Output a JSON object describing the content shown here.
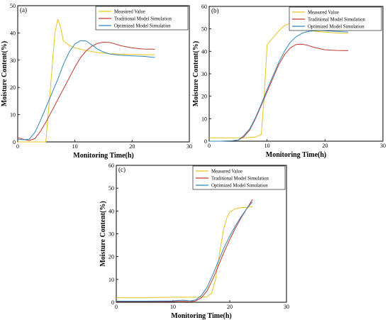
{
  "chart_data": [
    {
      "type": "line",
      "panel_label": "(a)",
      "xlabel": "Monitoring Time(h)",
      "ylabel": "Moisture Content(%)",
      "xlim": [
        0,
        30
      ],
      "ylim": [
        0,
        50
      ],
      "xticks": [
        0,
        10,
        20,
        30
      ],
      "yticks": [
        0,
        10,
        20,
        30,
        40,
        50
      ],
      "legend_position": "top-right",
      "series": [
        {
          "name": "Measured Value",
          "color": "#e8c421",
          "x": [
            0,
            4.9,
            5.0,
            5.8,
            6.5,
            7.0,
            7.5,
            8.0,
            9,
            10,
            12,
            14,
            16,
            18,
            20,
            22,
            24
          ],
          "y": [
            0,
            0,
            2,
            22,
            40,
            45,
            42,
            37,
            35.5,
            34.5,
            33.5,
            32.8,
            32.4,
            32.2,
            32.1,
            32.0,
            32.0
          ]
        },
        {
          "name": "Traditional Model Simulation",
          "color": "#c0392b",
          "x": [
            0,
            1,
            2,
            3,
            4,
            5,
            6,
            7,
            8,
            9,
            10,
            11,
            12,
            13,
            14,
            15,
            16,
            17,
            18,
            20,
            22,
            24
          ],
          "y": [
            1.5,
            1.0,
            0.5,
            1.2,
            4,
            7.5,
            11.5,
            15.5,
            19.5,
            23.5,
            27.5,
            31,
            33.5,
            35.2,
            36.2,
            36.6,
            36.5,
            36,
            35.3,
            34.5,
            34.1,
            34.0
          ]
        },
        {
          "name": "Optimized Model Simulation",
          "color": "#2e86c1",
          "x": [
            0,
            1,
            2,
            3,
            4,
            5,
            6,
            7,
            8,
            9,
            10,
            11,
            12,
            13,
            14,
            15,
            16,
            18,
            20,
            22,
            24
          ],
          "y": [
            1.0,
            0.8,
            1.0,
            3.5,
            8,
            13,
            18,
            23,
            28.5,
            33,
            36,
            37.2,
            37,
            35.5,
            34,
            33,
            32.3,
            31.8,
            31.6,
            31.4,
            31.0
          ]
        }
      ]
    },
    {
      "type": "line",
      "panel_label": "(b)",
      "xlabel": "Monitoring Time(h)",
      "ylabel": "Moisture Content(%)",
      "xlim": [
        0,
        30
      ],
      "ylim": [
        0,
        60
      ],
      "xticks": [
        0,
        10,
        20,
        30
      ],
      "yticks": [
        0,
        10,
        20,
        30,
        40,
        50,
        60
      ],
      "legend_position": "top-right",
      "series": [
        {
          "name": "Measured Value",
          "color": "#e8c421",
          "x": [
            0,
            2,
            4,
            6,
            8,
            9,
            9.5,
            10,
            11,
            12,
            13,
            14,
            15,
            16,
            17,
            18,
            20,
            22,
            24
          ],
          "y": [
            1.5,
            1.5,
            1.5,
            1.5,
            1.8,
            3,
            20,
            43,
            46,
            49,
            51.5,
            52.5,
            52.5,
            51.5,
            50,
            49,
            48.5,
            48.2,
            48.0
          ]
        },
        {
          "name": "Traditional Model Simulation",
          "color": "#c0392b",
          "x": [
            0,
            2,
            4,
            5,
            6,
            7,
            8,
            9,
            10,
            11,
            12,
            13,
            14,
            15,
            16,
            17,
            18,
            20,
            22,
            24
          ],
          "y": [
            0,
            0,
            0.2,
            0.5,
            2,
            5,
            10,
            16,
            22,
            28,
            34,
            38.5,
            41.5,
            43,
            43.2,
            42.7,
            41.8,
            40.7,
            40.4,
            40.3
          ]
        },
        {
          "name": "Optimized Model Simulation",
          "color": "#2e86c1",
          "x": [
            0,
            2,
            4,
            5,
            6,
            7,
            8,
            9,
            10,
            11,
            12,
            13,
            14,
            15,
            16,
            17,
            18,
            19,
            20,
            22,
            24
          ],
          "y": [
            0,
            0,
            0.2,
            0.5,
            2.5,
            5.5,
            10.5,
            16.5,
            23,
            29,
            35,
            40,
            44,
            46.5,
            48,
            48.8,
            49.2,
            49.3,
            49.2,
            48.9,
            48.6
          ]
        }
      ]
    },
    {
      "type": "line",
      "panel_label": "(c)",
      "xlabel": "Monitoring Time(h)",
      "ylabel": "Moisture Content(%)",
      "xlim": [
        0,
        30
      ],
      "ylim": [
        0,
        60
      ],
      "xticks": [
        0,
        10,
        20,
        30
      ],
      "yticks": [
        0,
        10,
        20,
        30,
        40,
        50,
        60
      ],
      "legend_position": "top-right",
      "series": [
        {
          "name": "Measured Value",
          "color": "#e8c421",
          "x": [
            0,
            5,
            10,
            14,
            16,
            16.8,
            17.5,
            18,
            18.5,
            19,
            19.5,
            20,
            21,
            22,
            23,
            24
          ],
          "y": [
            2,
            2,
            2.2,
            2.2,
            2.4,
            4,
            10,
            18,
            26,
            33,
            37,
            39.5,
            41,
            41.5,
            41.5,
            42
          ]
        },
        {
          "name": "Traditional Model Simulation",
          "color": "#c0392b",
          "x": [
            0,
            5,
            10,
            11,
            12,
            13,
            14,
            15,
            16,
            17,
            18,
            19,
            20,
            21,
            22,
            23,
            24
          ],
          "y": [
            0.3,
            0.3,
            0.3,
            0.4,
            0.4,
            0.2,
            0.6,
            2,
            5,
            10,
            16,
            22,
            27.5,
            32.5,
            37,
            41,
            45
          ]
        },
        {
          "name": "Optimized Model Simulation",
          "color": "#2e86c1",
          "x": [
            0,
            5,
            10,
            11,
            12,
            13,
            14,
            15,
            16,
            17,
            18,
            19,
            20,
            21,
            22,
            23,
            24
          ],
          "y": [
            0.5,
            0.5,
            0.6,
            0.8,
            0.9,
            0.6,
            1,
            3,
            6.5,
            12,
            18,
            24,
            29,
            33.5,
            37.5,
            41,
            44
          ]
        }
      ]
    }
  ]
}
